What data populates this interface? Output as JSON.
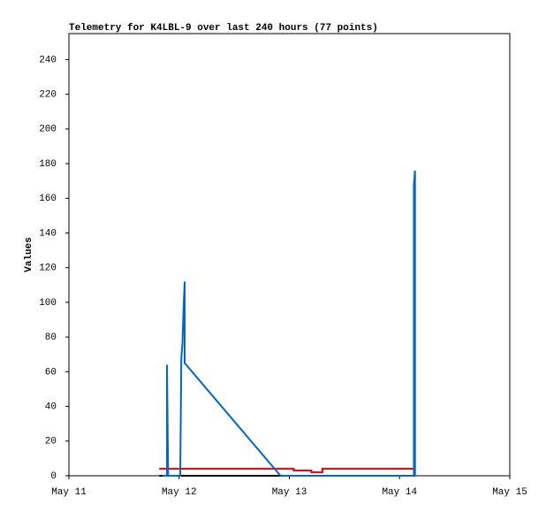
{
  "chart_data": {
    "type": "line",
    "title": "Telemetry for K4LBL-9 over last 240 hours (77 points)",
    "y_label": "Values",
    "xlim": [
      11,
      15
    ],
    "xticks": [
      {
        "value": 11,
        "label": "May 11"
      },
      {
        "value": 12,
        "label": "May 12"
      },
      {
        "value": 13,
        "label": "May 13"
      },
      {
        "value": 14,
        "label": "May 14"
      },
      {
        "value": 15,
        "label": "May 15"
      }
    ],
    "ylim": [
      0,
      255
    ],
    "yticks": [
      0,
      20,
      40,
      60,
      80,
      100,
      120,
      140,
      160,
      180,
      200,
      220,
      240
    ],
    "series": [
      {
        "color": "#000000",
        "x": [
          11.82,
          14.14
        ],
        "values": [
          0,
          0
        ]
      },
      {
        "color": "#dd0000",
        "x": [
          11.82,
          13.04,
          13.04,
          13.2,
          13.2,
          13.3,
          13.3,
          14.14
        ],
        "values": [
          4,
          4,
          3,
          3,
          2,
          2,
          4,
          4
        ]
      },
      {
        "color": "#0066cc",
        "x": [
          11.85,
          11.89,
          11.89,
          11.9,
          12.01,
          12.02,
          12.03,
          12.04,
          12.05,
          12.05,
          12.92,
          14.13,
          14.13,
          14.14,
          14.14
        ],
        "values": [
          0,
          0,
          64,
          0,
          0,
          68,
          76,
          96,
          112,
          65,
          0,
          0,
          168,
          176,
          0
        ]
      }
    ]
  }
}
